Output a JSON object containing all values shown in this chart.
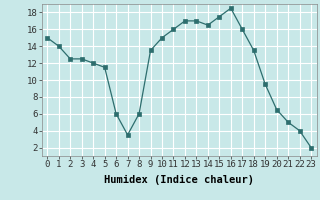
{
  "x": [
    0,
    1,
    2,
    3,
    4,
    5,
    6,
    7,
    8,
    9,
    10,
    11,
    12,
    13,
    14,
    15,
    16,
    17,
    18,
    19,
    20,
    21,
    22,
    23
  ],
  "y": [
    15,
    14,
    12.5,
    12.5,
    12,
    11.5,
    6,
    3.5,
    6,
    13.5,
    15,
    16,
    17,
    17,
    16.5,
    17.5,
    18.5,
    16,
    13.5,
    9.5,
    6.5,
    5,
    4,
    2
  ],
  "line_color": "#2d6e6e",
  "marker": "s",
  "marker_size": 2.5,
  "bg_color": "#c8e8e8",
  "grid_color": "#ffffff",
  "xlabel": "Humidex (Indice chaleur)",
  "xlim": [
    -0.5,
    23.5
  ],
  "ylim": [
    1,
    19
  ],
  "yticks": [
    2,
    4,
    6,
    8,
    10,
    12,
    14,
    16,
    18
  ],
  "xticks": [
    0,
    1,
    2,
    3,
    4,
    5,
    6,
    7,
    8,
    9,
    10,
    11,
    12,
    13,
    14,
    15,
    16,
    17,
    18,
    19,
    20,
    21,
    22,
    23
  ],
  "xlabel_fontsize": 7.5,
  "tick_fontsize": 6.5
}
